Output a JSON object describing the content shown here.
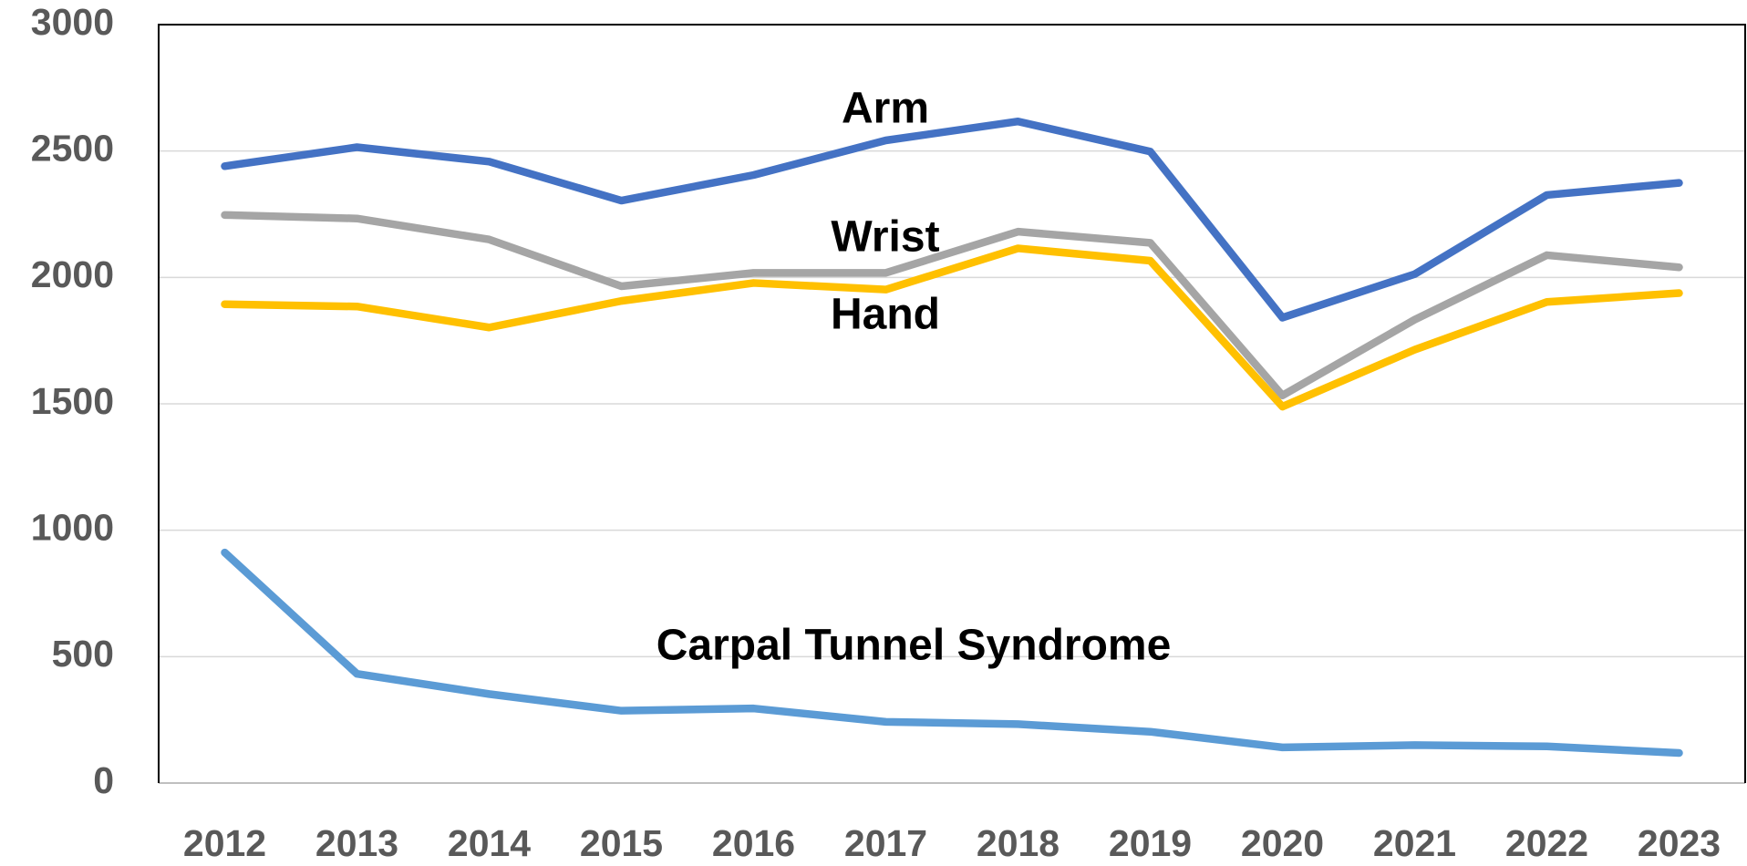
{
  "chart_data": {
    "type": "line",
    "categories": [
      "2012",
      "2013",
      "2014",
      "2015",
      "2016",
      "2017",
      "2018",
      "2019",
      "2020",
      "2021",
      "2022",
      "2023"
    ],
    "series": [
      {
        "name": "Arm",
        "color": "#4472c4",
        "values": [
          2440,
          2515,
          2458,
          2304,
          2405,
          2542,
          2617,
          2498,
          1841,
          2013,
          2326,
          2374
        ]
      },
      {
        "name": "Wrist",
        "color": "#a5a5a5",
        "values": [
          2247,
          2233,
          2150,
          1965,
          2018,
          2018,
          2181,
          2137,
          1533,
          1833,
          2088,
          2040
        ]
      },
      {
        "name": "Hand",
        "color": "#ffc000",
        "values": [
          1894,
          1885,
          1802,
          1907,
          1978,
          1952,
          2115,
          2066,
          1489,
          1714,
          1903,
          1938
        ]
      },
      {
        "name": "Carpal Tunnel Syndrome",
        "color": "#5b9bd5",
        "values": [
          912,
          432,
          352,
          286,
          295,
          242,
          233,
          203,
          141,
          150,
          145,
          119
        ]
      }
    ],
    "ylim": [
      0,
      3000
    ],
    "yticks": [
      0,
      500,
      1000,
      1500,
      2000,
      2500,
      3000
    ],
    "grid": true
  }
}
